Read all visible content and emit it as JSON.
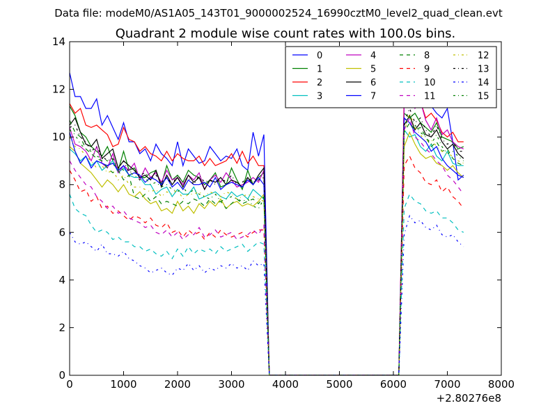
{
  "chart_data": {
    "type": "line",
    "suptitle": "Data file: modeM0/AS1A05_143T01_9000002524_16990cztM0_level2_quad_clean.evt",
    "title": "Quadrant 2 module wise count rates with 100.0s bins.",
    "xlabel": "",
    "ylabel": "",
    "x_offset_label": "+2.80276e8",
    "xlim": [
      0,
      8000
    ],
    "ylim": [
      0,
      14
    ],
    "xticks": [
      0,
      1000,
      2000,
      3000,
      4000,
      5000,
      6000,
      7000,
      8000
    ],
    "yticks": [
      0,
      2,
      4,
      6,
      8,
      10,
      12,
      14
    ],
    "xtick_labels": [
      "0",
      "1000",
      "2000",
      "3000",
      "4000",
      "5000",
      "6000",
      "7000",
      "8000"
    ],
    "ytick_labels": [
      "0",
      "2",
      "4",
      "6",
      "8",
      "10",
      "12",
      "14"
    ],
    "legend_position": "top-right",
    "legend_columns": 4,
    "segments": {
      "seg1_x_start": 0,
      "seg1_x_step": 100,
      "seg1_points": 37,
      "drop_x": 3700,
      "gap_end_x": 6100,
      "seg2_x_start": 6200,
      "seg2_x_step": 100,
      "seg2_points": 12
    },
    "series": [
      {
        "name": "0",
        "color": "#0000ff",
        "dash": "solid",
        "seg1": [
          12.7,
          11.7,
          11.7,
          11.2,
          11.2,
          11.6,
          10.5,
          10.9,
          10.4,
          9.9,
          10.6,
          9.8,
          9.8,
          9.3,
          9.5,
          9.0,
          9.7,
          9.3,
          9.1,
          8.8,
          9.8,
          8.8,
          9.5,
          9.2,
          8.9,
          9.0,
          9.6,
          9.3,
          9.0,
          9.2,
          9.1,
          9.5,
          8.8,
          8.6,
          10.2,
          9.2,
          10.1
        ],
        "seg2": [
          11.4,
          13.0,
          12.0,
          12.5,
          12.0,
          11.3,
          11.0,
          10.8,
          11.2,
          9.8,
          8.2,
          8.4
        ]
      },
      {
        "name": "1",
        "color": "#008000",
        "dash": "solid",
        "seg1": [
          11.3,
          10.9,
          10.2,
          10.0,
          9.6,
          9.4,
          9.2,
          9.6,
          9.0,
          8.6,
          9.4,
          8.6,
          8.7,
          8.3,
          8.3,
          8.5,
          8.6,
          8.0,
          8.8,
          8.2,
          8.4,
          8.1,
          8.6,
          8.4,
          8.3,
          8.0,
          8.2,
          8.5,
          7.9,
          8.0,
          8.7,
          8.2,
          7.8,
          8.6,
          8.0,
          8.3,
          8.5
        ],
        "seg2": [
          11.0,
          10.8,
          11.0,
          10.6,
          10.4,
          10.2,
          10.6,
          10.0,
          9.9,
          9.8,
          9.5,
          9.6
        ]
      },
      {
        "name": "2",
        "color": "#ff0000",
        "dash": "solid",
        "seg1": [
          11.4,
          11.0,
          11.2,
          10.5,
          10.4,
          10.5,
          10.3,
          10.1,
          9.6,
          9.7,
          10.4,
          9.9,
          9.8,
          9.4,
          9.6,
          9.3,
          9.2,
          9.0,
          9.4,
          9.0,
          9.3,
          9.1,
          9.0,
          9.0,
          9.2,
          8.8,
          9.1,
          8.8,
          8.9,
          9.0,
          9.3,
          8.9,
          9.4,
          8.9,
          9.2,
          8.8,
          8.8
        ],
        "seg2": [
          11.8,
          12.6,
          11.5,
          11.5,
          10.8,
          11.0,
          10.7,
          10.2,
          10.0,
          10.2,
          9.8,
          9.8
        ]
      },
      {
        "name": "3",
        "color": "#00bfbf",
        "dash": "solid",
        "seg1": [
          9.5,
          9.3,
          9.0,
          9.2,
          8.8,
          9.0,
          8.6,
          8.8,
          9.0,
          8.5,
          8.7,
          8.4,
          8.3,
          8.3,
          8.0,
          8.0,
          7.6,
          7.8,
          7.9,
          7.5,
          7.8,
          7.6,
          7.6,
          7.9,
          7.4,
          7.5,
          7.6,
          7.7,
          7.5,
          7.4,
          7.7,
          7.5,
          7.6,
          7.4,
          7.8,
          7.6,
          7.4
        ],
        "seg2": [
          10.3,
          10.0,
          10.1,
          9.6,
          9.4,
          9.7,
          9.2,
          9.0,
          9.4,
          8.9,
          8.8,
          8.8
        ]
      },
      {
        "name": "4",
        "color": "#bf00bf",
        "dash": "solid",
        "seg1": [
          10.4,
          9.7,
          9.6,
          9.4,
          9.0,
          9.6,
          8.9,
          8.7,
          9.3,
          8.5,
          8.8,
          8.6,
          8.9,
          8.2,
          8.7,
          8.3,
          8.5,
          8.1,
          8.6,
          8.2,
          8.3,
          8.0,
          8.4,
          8.2,
          8.5,
          7.8,
          8.2,
          8.4,
          8.1,
          8.5,
          8.2,
          7.9,
          8.0,
          8.1,
          8.3,
          8.1,
          8.6
        ],
        "seg2": [
          11.4,
          12.3,
          11.2,
          11.5,
          10.7,
          10.3,
          10.8,
          10.1,
          10.3,
          9.8,
          9.6,
          9.5
        ]
      },
      {
        "name": "5",
        "color": "#bfbf00",
        "dash": "solid",
        "seg1": [
          9.6,
          9.4,
          8.9,
          8.7,
          8.5,
          8.2,
          7.9,
          8.2,
          8.0,
          7.7,
          8.0,
          7.6,
          7.5,
          7.7,
          7.4,
          7.2,
          7.3,
          6.9,
          7.0,
          6.8,
          7.3,
          6.9,
          7.1,
          6.8,
          7.2,
          7.0,
          7.3,
          7.1,
          7.4,
          7.0,
          7.2,
          7.3,
          7.1,
          7.2,
          7.1,
          7.3,
          7.6
        ],
        "seg2": [
          9.6,
          10.2,
          9.7,
          9.3,
          9.1,
          9.2,
          8.9,
          8.8,
          8.6,
          8.8,
          8.5,
          8.3
        ]
      },
      {
        "name": "6",
        "color": "#000000",
        "dash": "solid",
        "seg1": [
          10.5,
          10.8,
          10.2,
          9.7,
          9.6,
          9.9,
          9.1,
          9.3,
          9.5,
          8.7,
          9.0,
          8.8,
          8.6,
          8.3,
          8.4,
          8.2,
          8.6,
          7.9,
          8.4,
          8.0,
          8.3,
          7.9,
          8.4,
          8.1,
          8.3,
          7.8,
          8.2,
          8.1,
          8.3,
          8.0,
          8.2,
          8.1,
          7.9,
          8.3,
          8.0,
          8.4,
          8.7
        ],
        "seg2": [
          10.5,
          10.9,
          10.3,
          10.6,
          10.1,
          10.0,
          10.3,
          9.8,
          9.5,
          9.7,
          9.3,
          9.1
        ]
      },
      {
        "name": "7",
        "color": "#0000ff",
        "dash": "solid",
        "seg1": [
          10.2,
          9.4,
          8.9,
          9.2,
          8.7,
          9.0,
          8.9,
          8.8,
          8.9,
          8.6,
          8.8,
          8.4,
          8.5,
          8.4,
          8.1,
          8.3,
          8.2,
          8.0,
          8.3,
          7.9,
          8.1,
          7.8,
          8.2,
          8.0,
          8.0,
          8.1,
          7.9,
          8.3,
          7.8,
          8.0,
          8.1,
          8.0,
          7.9,
          8.2,
          8.0,
          8.3,
          8.0
        ],
        "seg2": [
          10.8,
          10.6,
          10.2,
          10.0,
          9.8,
          9.4,
          9.6,
          9.1,
          8.8,
          8.6,
          8.4,
          8.3
        ]
      },
      {
        "name": "8",
        "color": "#008000",
        "dash": "dashed",
        "seg1": [
          10.7,
          10.2,
          10.0,
          9.5,
          9.3,
          9.1,
          9.0,
          8.7,
          8.5,
          8.6,
          8.2,
          8.4,
          7.5,
          7.4,
          7.6,
          7.3,
          7.5,
          7.2,
          7.3,
          7.2,
          7.1,
          7.3,
          7.2,
          7.4,
          7.3,
          7.1,
          7.4,
          7.2,
          7.3,
          7.0,
          7.2,
          7.4,
          7.2,
          7.3,
          7.4,
          7.2,
          7.5
        ],
        "seg2": [
          10.2,
          10.6,
          10.3,
          10.4,
          10.0,
          9.6,
          9.8,
          9.4,
          9.5,
          9.1,
          8.9,
          8.8
        ]
      },
      {
        "name": "9",
        "color": "#ff0000",
        "dash": "dashed",
        "seg1": [
          8.6,
          8.2,
          7.7,
          7.8,
          7.3,
          7.5,
          7.0,
          7.1,
          6.8,
          6.9,
          6.7,
          6.5,
          6.7,
          6.6,
          6.4,
          6.6,
          6.3,
          6.2,
          6.4,
          6.0,
          6.1,
          5.8,
          6.1,
          5.9,
          6.0,
          5.7,
          6.0,
          5.8,
          6.1,
          5.9,
          5.8,
          5.9,
          6.0,
          5.8,
          6.0,
          6.1,
          6.1
        ],
        "seg2": [
          8.8,
          9.2,
          8.7,
          8.5,
          8.1,
          8.0,
          8.2,
          7.7,
          7.9,
          7.5,
          7.3,
          7.0
        ]
      },
      {
        "name": "10",
        "color": "#00bfbf",
        "dash": "dashed",
        "seg1": [
          7.6,
          7.0,
          6.8,
          6.7,
          6.3,
          6.0,
          6.1,
          6.0,
          5.7,
          5.8,
          5.6,
          5.6,
          5.4,
          5.4,
          5.2,
          5.3,
          5.1,
          5.0,
          5.2,
          4.9,
          5.3,
          5.0,
          5.4,
          5.1,
          5.3,
          5.2,
          5.3,
          5.1,
          5.4,
          5.2,
          5.3,
          5.4,
          5.5,
          5.2,
          5.4,
          5.6,
          5.5
        ],
        "seg2": [
          7.0,
          7.6,
          7.3,
          7.2,
          6.9,
          6.8,
          6.9,
          6.6,
          6.6,
          6.4,
          6.1,
          6.0
        ]
      },
      {
        "name": "11",
        "color": "#bf00bf",
        "dash": "dashed",
        "seg1": [
          9.0,
          8.6,
          8.3,
          8.0,
          7.9,
          7.5,
          7.3,
          7.0,
          7.1,
          6.8,
          6.9,
          6.6,
          6.5,
          6.4,
          6.2,
          6.3,
          6.0,
          5.9,
          6.1,
          5.8,
          6.0,
          5.7,
          5.9,
          5.9,
          6.2,
          5.8,
          5.9,
          6.1,
          5.8,
          5.9,
          6.0,
          5.7,
          5.8,
          5.9,
          6.1,
          5.9,
          6.3
        ],
        "seg2": [
          10.3,
          10.8,
          10.0,
          9.8,
          9.5,
          9.3,
          9.0,
          8.8,
          8.4,
          8.2,
          7.9,
          7.6
        ]
      },
      {
        "name": "12",
        "color": "#bfbf00",
        "dash": "dashdot",
        "seg1": [
          10.0,
          9.6,
          9.5,
          9.2,
          9.0,
          8.7,
          8.8,
          8.5,
          8.6,
          8.2,
          8.4,
          8.0,
          7.9,
          7.9,
          7.8,
          7.7,
          7.8,
          7.5,
          7.7,
          7.6,
          7.8,
          7.4,
          7.6,
          7.6,
          7.7,
          7.5,
          7.7,
          7.6,
          7.5,
          7.7,
          7.6,
          7.4,
          7.5,
          7.6,
          7.5,
          7.4,
          7.3
        ],
        "seg2": [
          10.2,
          11.0,
          10.4,
          10.1,
          9.8,
          9.9,
          9.6,
          9.4,
          9.3,
          9.2,
          9.0,
          8.9
        ]
      },
      {
        "name": "13",
        "color": "#000000",
        "dash": "dashdot",
        "seg1": [
          10.4,
          10.5,
          10.0,
          9.8,
          9.4,
          9.6,
          9.2,
          9.0,
          9.1,
          8.7,
          9.0,
          8.5,
          8.6,
          8.4,
          8.5,
          8.2,
          8.4,
          8.1,
          8.3,
          8.0,
          8.4,
          8.1,
          8.3,
          8.0,
          8.4,
          8.1,
          8.2,
          8.0,
          8.3,
          8.1,
          8.4,
          8.0,
          8.1,
          8.3,
          8.1,
          8.2,
          8.3
        ],
        "seg2": [
          10.6,
          11.2,
          10.6,
          10.8,
          10.3,
          10.0,
          10.5,
          9.9,
          9.7,
          9.8,
          9.4,
          9.4
        ]
      },
      {
        "name": "14",
        "color": "#0000ff",
        "dash": "dashdot",
        "seg1": [
          6.0,
          5.6,
          5.5,
          5.6,
          5.4,
          5.2,
          5.5,
          5.1,
          5.1,
          5.0,
          5.2,
          4.9,
          4.8,
          4.6,
          4.5,
          4.3,
          4.4,
          4.5,
          4.3,
          4.2,
          4.5,
          4.4,
          4.7,
          4.4,
          4.6,
          4.3,
          4.5,
          4.4,
          4.6,
          4.5,
          4.7,
          4.5,
          4.6,
          4.4,
          4.8,
          4.6,
          4.7
        ],
        "seg2": [
          5.9,
          6.7,
          6.4,
          6.5,
          6.2,
          6.1,
          6.3,
          5.9,
          5.8,
          5.9,
          5.6,
          5.4
        ]
      },
      {
        "name": "15",
        "color": "#008000",
        "dash": "dashdot",
        "seg1": [
          10.3,
          10.1,
          9.7,
          9.5,
          9.4,
          9.2,
          9.1,
          9.0,
          8.8,
          8.8,
          8.6,
          8.5,
          8.4,
          8.2,
          8.3,
          8.0,
          8.1,
          7.9,
          8.0,
          7.8,
          7.7,
          7.9,
          7.6,
          7.8,
          7.6,
          7.5,
          7.4,
          7.6,
          7.3,
          7.4,
          7.5,
          7.4,
          7.3,
          7.4,
          7.1,
          7.0,
          7.4
        ],
        "seg2": [
          10.4,
          10.9,
          10.5,
          10.2,
          10.0,
          9.7,
          10.1,
          9.6,
          9.3,
          9.4,
          9.2,
          9.0
        ]
      }
    ]
  }
}
